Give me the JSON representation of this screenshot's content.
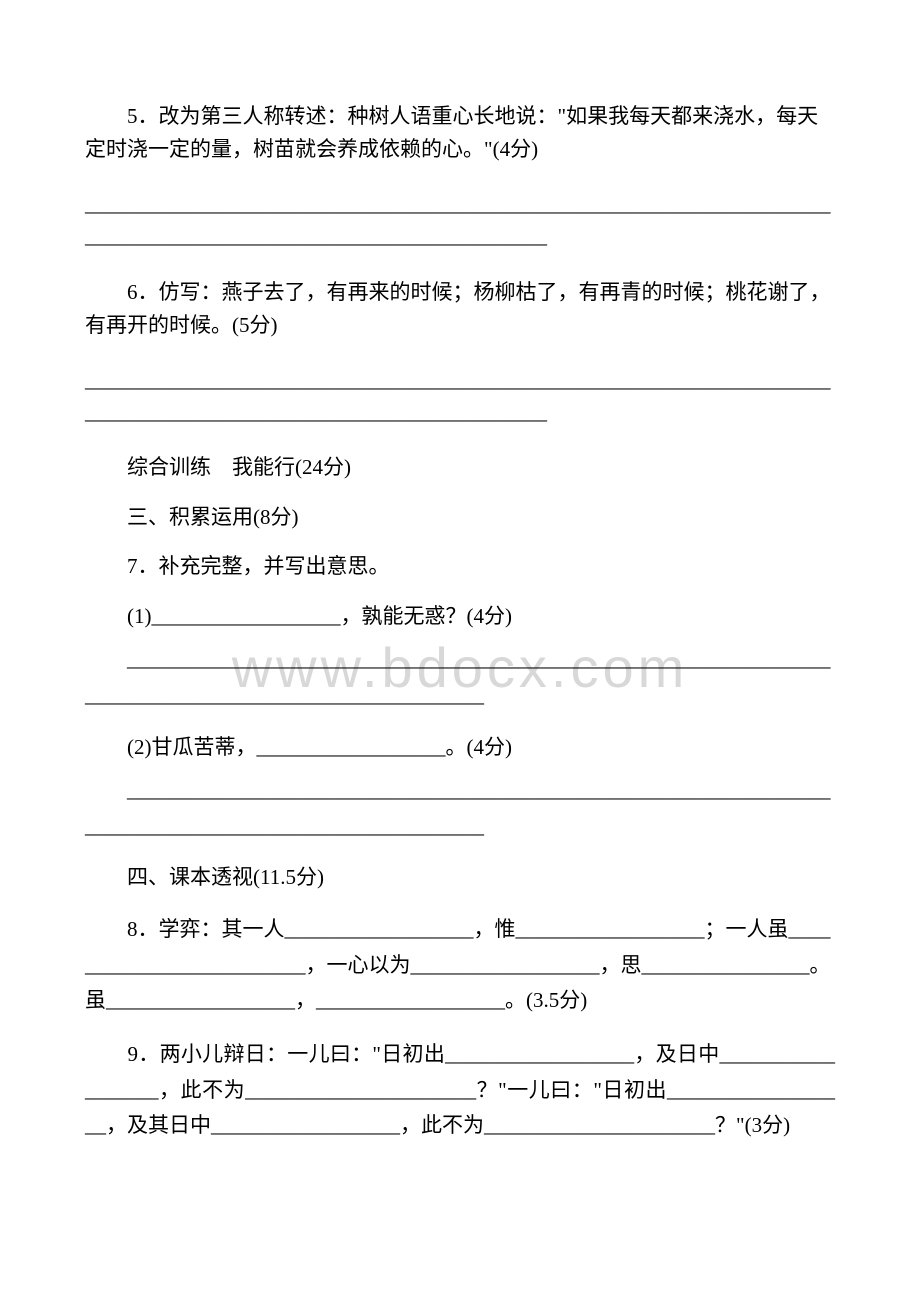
{
  "q5": {
    "text": "5．改为第三人称转述：种树人语重心长地说：\"如果我每天都来浇水，每天定时浇一定的量，树苗就会养成依赖的心。\"(4分)",
    "blanks": "___________________________________________________________________________________________________________________"
  },
  "q6": {
    "text": "6．仿写：燕子去了，有再来的时候；杨柳枯了，有再青的时候；桃花谢了，有再开的时候。(5分)",
    "blanks": "___________________________________________________________________________________________________________________"
  },
  "section1": "综合训练　我能行(24分)",
  "section2": "三、积累运用(8分)",
  "q7": {
    "text": "7．补充完整，并写出意思。",
    "sub1": "(1)__________________，孰能无惑？(4分)",
    "sub1_blanks": "　　_________________________________________________________________________________________________________",
    "sub2": "(2)甘瓜苦蒂，__________________。(4分)",
    "sub2_blanks": "　　_________________________________________________________________________________________________________"
  },
  "section3": "四、课本透视(11.5分)",
  "q8": {
    "text": "　　8．学弈：其一人__________________，惟__________________；一人虽_________________________，一心以为__________________，思________________。虽__________________，__________________。(3.5分)"
  },
  "q9": {
    "text": "　　9．两小儿辩日：一儿曰：\"日初出__________________，及日中__________________，此不为______________________？\"一儿曰：\"日初出__________________，及其日中__________________，此不为______________________？\"(3分)"
  },
  "watermark": "www.bdocx.com"
}
